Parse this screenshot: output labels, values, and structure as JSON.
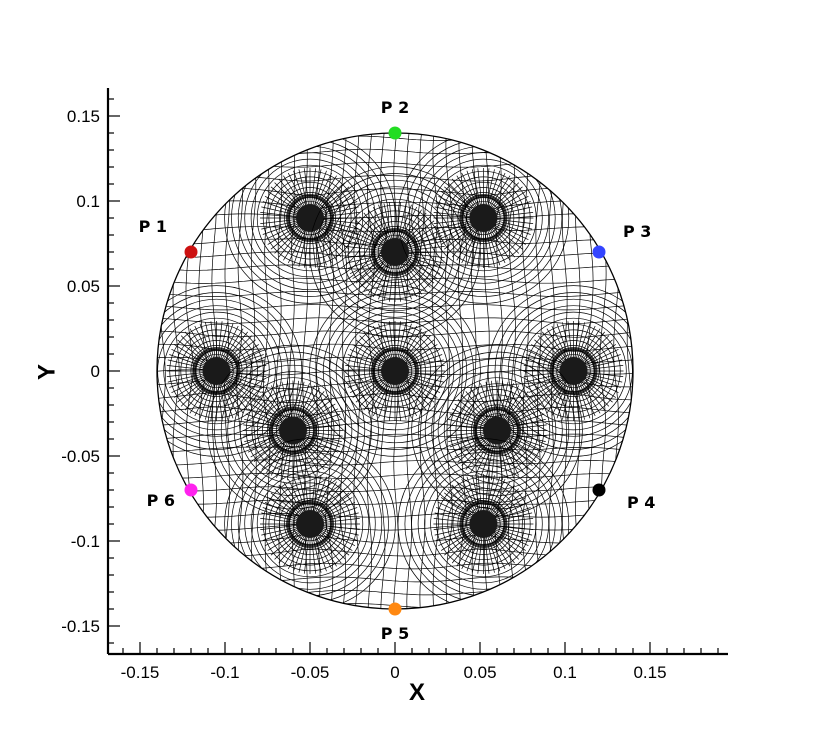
{
  "chart_data": {
    "type": "scatter",
    "title": "",
    "xlabel": "X",
    "ylabel": "Y",
    "xlim": [
      -0.17,
      0.195
    ],
    "ylim": [
      -0.165,
      0.165
    ],
    "x_ticks": [
      -0.15,
      -0.1,
      -0.05,
      0,
      0.05,
      0.1,
      0.15
    ],
    "x_tick_labels": [
      "-0.15",
      "-0.1",
      "-0.05",
      "0",
      "0.05",
      "0.1",
      "0.15"
    ],
    "y_ticks": [
      0.15,
      0.1,
      0.05,
      0,
      -0.05,
      -0.1,
      -0.15
    ],
    "y_tick_labels": [
      "0.15",
      "0.1",
      "0.05",
      "0",
      "-0.05",
      "-0.1",
      "-0.15"
    ],
    "grid": false,
    "domain": {
      "shape": "circle",
      "center": [
        0,
        0
      ],
      "radius": 0.14
    },
    "mesh_refinement_centers": [
      {
        "x": -0.05,
        "y": 0.09
      },
      {
        "x": 0.0,
        "y": 0.07
      },
      {
        "x": 0.052,
        "y": 0.09
      },
      {
        "x": -0.105,
        "y": 0.0
      },
      {
        "x": 0.0,
        "y": 0.0
      },
      {
        "x": 0.105,
        "y": 0.0
      },
      {
        "x": -0.06,
        "y": -0.035
      },
      {
        "x": 0.06,
        "y": -0.035
      },
      {
        "x": -0.05,
        "y": -0.09
      },
      {
        "x": 0.052,
        "y": -0.09
      }
    ],
    "probes": [
      {
        "label": "P 1",
        "x": -0.12,
        "y": 0.07,
        "color": "#cc1111",
        "label_pos": "upper-left"
      },
      {
        "label": "P 2",
        "x": 0.0,
        "y": 0.14,
        "color": "#22dd22",
        "label_pos": "above"
      },
      {
        "label": "P 3",
        "x": 0.12,
        "y": 0.07,
        "color": "#3344ff",
        "label_pos": "upper-right"
      },
      {
        "label": "P 4",
        "x": 0.12,
        "y": -0.07,
        "color": "#000000",
        "label_pos": "lower-right"
      },
      {
        "label": "P 5",
        "x": 0.0,
        "y": -0.14,
        "color": "#ff8811",
        "label_pos": "below"
      },
      {
        "label": "P 6",
        "x": -0.12,
        "y": -0.07,
        "color": "#ff22ee",
        "label_pos": "lower-left"
      }
    ]
  }
}
